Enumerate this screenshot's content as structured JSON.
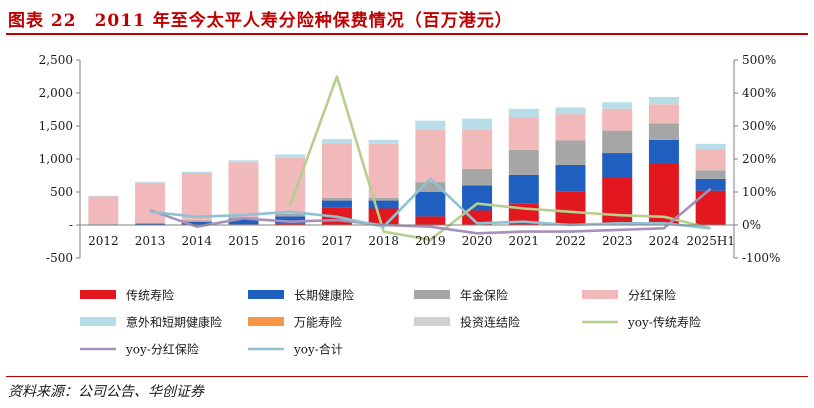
{
  "header": {
    "title": "图表 22　2011 年至今太平人寿分险种保费情况（百万港元）"
  },
  "footer": {
    "source": "资料来源：公司公告、华创证券"
  },
  "colors": {
    "title": "#c00000",
    "传统寿险": "#e3171e",
    "长期健康险": "#1f5fbf",
    "年金保险": "#a6a6a6",
    "分红保险": "#f1b9b9",
    "意外和短期健康险": "#b7dde8",
    "万能寿险": "#f79646",
    "投资连结险": "#d0d0d0",
    "yoy-传统寿险": "#b5cf8e",
    "yoy-分红保险": "#a591bb",
    "yoy-合计": "#8fc1d3"
  },
  "chart_data": {
    "type": "bar",
    "stacked": true,
    "categories": [
      "2012",
      "2013",
      "2014",
      "2015",
      "2016",
      "2017",
      "2018",
      "2019",
      "2020",
      "2021",
      "2022",
      "2023",
      "2024",
      "2025H1"
    ],
    "ylim": [
      -500,
      2500
    ],
    "y_ticks": [
      "-500",
      "-",
      "500",
      "1,000",
      "1,500",
      "2,000",
      "2,500"
    ],
    "y2lim": [
      -100,
      500
    ],
    "y2_ticks": [
      "-100%",
      "0%",
      "100%",
      "200%",
      "300%",
      "400%",
      "500%"
    ],
    "grid": false,
    "legend_position": "bottom",
    "series": [
      {
        "name": "传统寿险",
        "kind": "bar",
        "values": [
          3,
          5,
          8,
          10,
          20,
          270,
          250,
          130,
          220,
          330,
          510,
          720,
          940,
          520
        ]
      },
      {
        "name": "长期健康险",
        "kind": "bar",
        "values": [
          5,
          15,
          40,
          80,
          110,
          100,
          120,
          370,
          380,
          430,
          400,
          370,
          350,
          180
        ]
      },
      {
        "name": "年金保险",
        "kind": "bar",
        "values": [
          5,
          10,
          20,
          30,
          40,
          40,
          40,
          150,
          250,
          380,
          370,
          340,
          250,
          130
        ]
      },
      {
        "name": "分红保险",
        "kind": "bar",
        "values": [
          420,
          610,
          720,
          830,
          850,
          830,
          820,
          800,
          600,
          490,
          400,
          330,
          290,
          320
        ]
      },
      {
        "name": "意外和短期健康险",
        "kind": "bar",
        "values": [
          10,
          15,
          20,
          30,
          50,
          60,
          60,
          130,
          160,
          130,
          100,
          100,
          110,
          80
        ]
      },
      {
        "name": "万能寿险",
        "kind": "bar",
        "values": [
          0,
          0,
          0,
          0,
          0,
          0,
          0,
          0,
          0,
          0,
          0,
          0,
          0,
          0
        ]
      },
      {
        "name": "投资连结险",
        "kind": "bar",
        "values": [
          0,
          0,
          0,
          0,
          0,
          0,
          0,
          0,
          0,
          0,
          0,
          0,
          0,
          0
        ]
      },
      {
        "name": "yoy-传统寿险",
        "kind": "line",
        "axis": "right",
        "values": [
          null,
          null,
          null,
          null,
          60,
          450,
          -20,
          -45,
          65,
          50,
          40,
          30,
          25,
          -10
        ]
      },
      {
        "name": "yoy-分红保险",
        "kind": "line",
        "axis": "right",
        "values": [
          null,
          45,
          -5,
          20,
          10,
          15,
          0,
          -5,
          -25,
          -20,
          -20,
          -15,
          -10,
          110
        ]
      },
      {
        "name": "yoy-合计",
        "kind": "line",
        "axis": "right",
        "values": [
          null,
          40,
          25,
          30,
          40,
          25,
          -5,
          140,
          5,
          10,
          0,
          5,
          5,
          -10
        ]
      }
    ]
  }
}
